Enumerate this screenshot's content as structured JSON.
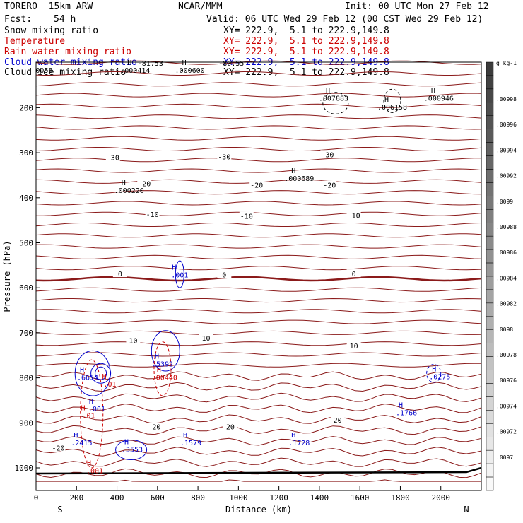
{
  "header": {
    "model": "TORERO  15km ARW",
    "center": "NCAR/MMM",
    "init": "Init: 00 UTC Mon 27 Feb 12",
    "fcst_label": "Fcst:",
    "fcst_value": "54 h",
    "valid": "Valid: 06 UTC Wed 29 Feb 12 (00 CST Wed 29 Feb 12)"
  },
  "fields": [
    {
      "name": "Snow mixing ratio",
      "xy": "XY= 222.9,  5.1 to 222.9,149.8",
      "color": "#000000"
    },
    {
      "name": "Temperature",
      "xy": "XY= 222.9,  5.1 to 222.9,149.8",
      "color": "#cc0000"
    },
    {
      "name": "Rain water mixing ratio",
      "xy": "XY= 222.9,  5.1 to 222.9,149.8",
      "color": "#cc0000"
    },
    {
      "name": "Cloud water mixing ratio",
      "xy": "XY= 222.9,  5.1 to 222.9,149.8",
      "color": "#0000cc"
    },
    {
      "name": "Cloud ice mixing ratio",
      "xy": "XY= 222.9,  5.1 to 222.9,149.8",
      "color": "#000000"
    }
  ],
  "chart_data": {
    "type": "cross-section",
    "xlabel": "Distance (km)",
    "ylabel": "Pressure (hPa)",
    "xlim": [
      0,
      2200
    ],
    "ylim": [
      1050,
      100
    ],
    "xticks": [
      0,
      200,
      400,
      600,
      800,
      1000,
      1200,
      1400,
      1600,
      1800,
      2000
    ],
    "yticks": [
      200,
      300,
      400,
      500,
      600,
      700,
      800,
      900,
      1000
    ],
    "endpoints": {
      "left": "S",
      "right": "N"
    },
    "temperature_labels": [
      {
        "text": "-30",
        "x": 380,
        "p": 312
      },
      {
        "text": "-30",
        "x": 930,
        "p": 310
      },
      {
        "text": "-30",
        "x": 1440,
        "p": 305
      },
      {
        "text": "-20",
        "x": 535,
        "p": 370
      },
      {
        "text": "-20",
        "x": 1090,
        "p": 373
      },
      {
        "text": "-20",
        "x": 1450,
        "p": 373
      },
      {
        "text": "-10",
        "x": 575,
        "p": 438
      },
      {
        "text": "-10",
        "x": 1040,
        "p": 442
      },
      {
        "text": "-10",
        "x": 1570,
        "p": 440
      },
      {
        "text": "0",
        "x": 415,
        "p": 570
      },
      {
        "text": "0",
        "x": 930,
        "p": 572
      },
      {
        "text": "0",
        "x": 1570,
        "p": 570
      },
      {
        "text": "10",
        "x": 480,
        "p": 718
      },
      {
        "text": "10",
        "x": 840,
        "p": 713
      },
      {
        "text": "10",
        "x": 1570,
        "p": 730
      },
      {
        "text": "20",
        "x": 595,
        "p": 910
      },
      {
        "text": "20",
        "x": 960,
        "p": 910
      },
      {
        "text": "20",
        "x": 1490,
        "p": 895
      },
      {
        "text": "-20",
        "x": 110,
        "p": 957
      }
    ],
    "temperature_levels": [
      {
        "label": "0",
        "bold": true
      },
      {
        "label": "-30",
        "bold": false
      },
      {
        "label": "-20",
        "bold": false
      },
      {
        "label": "-10",
        "bold": false
      },
      {
        "label": "10",
        "bold": false
      },
      {
        "label": "20",
        "bold": false
      }
    ],
    "maxima": [
      {
        "text": ".007883",
        "x": 1470,
        "p": 180,
        "color": "#000000"
      },
      {
        "text": ".006158",
        "x": 1760,
        "p": 199,
        "color": "#000000"
      },
      {
        "text": ".000946",
        "x": 1990,
        "p": 180,
        "color": "#000000"
      },
      {
        "text": ".000689",
        "x": 1300,
        "p": 358,
        "color": "#000000"
      },
      {
        "text": ".000220",
        "x": 460,
        "p": 385,
        "color": "#000000"
      },
      {
        "text": ".000414",
        "x": 490,
        "p": 118,
        "color": "#000000"
      },
      {
        "text": ".000600",
        "x": 760,
        "p": 118,
        "color": "#000000"
      },
      {
        "text": ".001",
        "x": 710,
        "p": 572,
        "color": "#0000cc"
      },
      {
        "text": ".6654",
        "x": 255,
        "p": 800,
        "color": "#0000cc"
      },
      {
        "text": ".01",
        "x": 365,
        "p": 815,
        "color": "#cc0000"
      },
      {
        "text": ".5392",
        "x": 625,
        "p": 770,
        "color": "#0000cc"
      },
      {
        "text": ".00440",
        "x": 635,
        "p": 800,
        "color": "#cc0000"
      },
      {
        "text": ".0275",
        "x": 1995,
        "p": 798,
        "color": "#0000cc"
      },
      {
        "text": ".1766",
        "x": 1830,
        "p": 878,
        "color": "#0000cc"
      },
      {
        "text": ".001",
        "x": 300,
        "p": 870,
        "color": "#0000cc"
      },
      {
        "text": ".01",
        "x": 260,
        "p": 885,
        "color": "#cc0000"
      },
      {
        "text": ".2415",
        "x": 225,
        "p": 945,
        "color": "#0000cc"
      },
      {
        "text": ".3553",
        "x": 475,
        "p": 960,
        "color": "#0000cc"
      },
      {
        "text": ".1579",
        "x": 765,
        "p": 945,
        "color": "#0000cc"
      },
      {
        "text": ".1728",
        "x": 1300,
        "p": 945,
        "color": "#0000cc"
      },
      {
        "text": ".001",
        "x": 290,
        "p": 1007,
        "color": "#cc0000"
      }
    ],
    "top_labels": [
      {
        "text": "-81.53",
        "x": 565,
        "p": 102
      },
      {
        "text": "-80.55",
        "x": 965,
        "p": 102
      },
      {
        "text": "0058",
        "x": 40,
        "p": 118
      }
    ],
    "colorbar": {
      "unit": "g kg-1",
      "ticks": [
        ".00998",
        ".00996",
        ".00994",
        ".00992",
        ".0099",
        ".00988",
        ".00986",
        ".00984",
        ".00982",
        ".0098",
        ".00978",
        ".00976",
        ".00974",
        ".00972",
        ".0097"
      ]
    }
  }
}
